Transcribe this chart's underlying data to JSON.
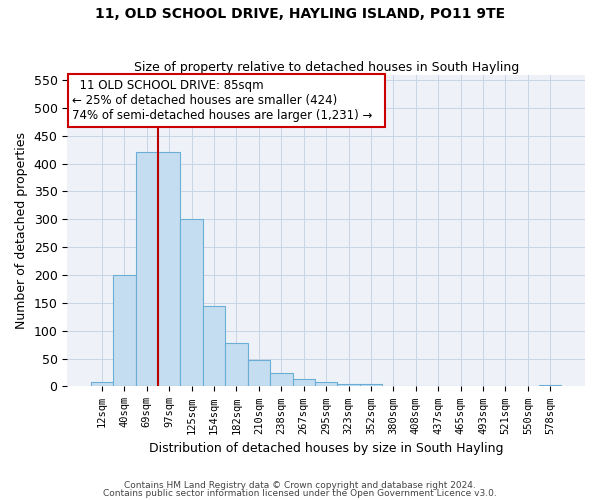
{
  "title": "11, OLD SCHOOL DRIVE, HAYLING ISLAND, PO11 9TE",
  "subtitle": "Size of property relative to detached houses in South Hayling",
  "xlabel": "Distribution of detached houses by size in South Hayling",
  "ylabel": "Number of detached properties",
  "bar_labels": [
    "12sqm",
    "40sqm",
    "69sqm",
    "97sqm",
    "125sqm",
    "154sqm",
    "182sqm",
    "210sqm",
    "238sqm",
    "267sqm",
    "295sqm",
    "323sqm",
    "352sqm",
    "380sqm",
    "408sqm",
    "437sqm",
    "465sqm",
    "493sqm",
    "521sqm",
    "550sqm",
    "578sqm"
  ],
  "bar_values": [
    8,
    200,
    420,
    420,
    300,
    145,
    78,
    48,
    25,
    13,
    8,
    5,
    4,
    0,
    0,
    0,
    0,
    0,
    0,
    0,
    2
  ],
  "bar_color": "#c5ddf0",
  "bar_edge_color": "#6aaed6",
  "vline_x_index": 3,
  "vline_color": "#bb0000",
  "ylim": [
    0,
    560
  ],
  "yticks": [
    0,
    50,
    100,
    150,
    200,
    250,
    300,
    350,
    400,
    450,
    500,
    550
  ],
  "annotation_title": "11 OLD SCHOOL DRIVE: 85sqm",
  "annotation_line1": "← 25% of detached houses are smaller (424)",
  "annotation_line2": "74% of semi-detached houses are larger (1,231) →",
  "footer1": "Contains HM Land Registry data © Crown copyright and database right 2024.",
  "footer2": "Contains public sector information licensed under the Open Government Licence v3.0.",
  "background_color": "#ffffff",
  "grid_color": "#c8d4e4",
  "plot_bg_color": "#eef2f8"
}
